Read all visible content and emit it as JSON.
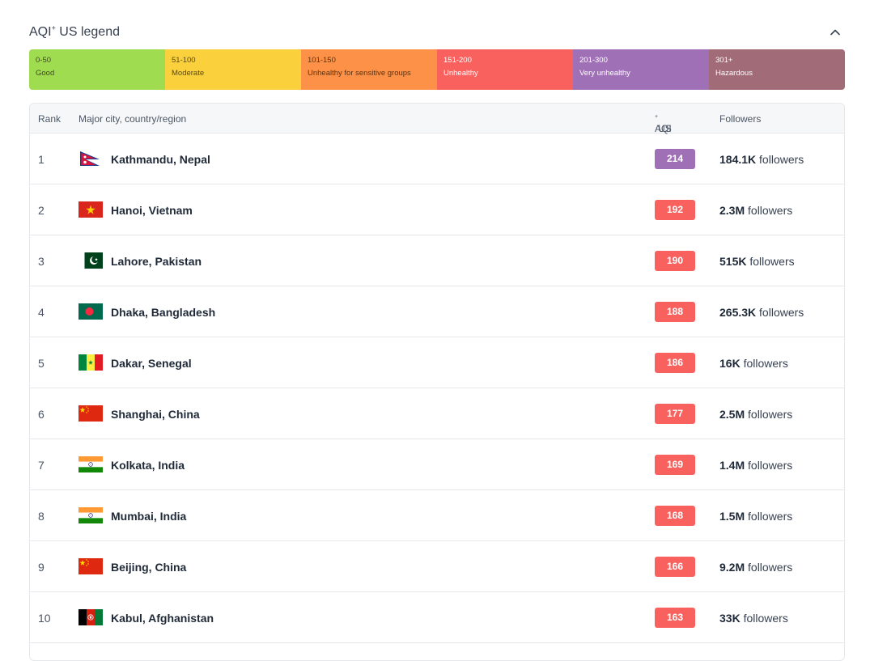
{
  "legend": {
    "title": "AQI",
    "title_sup": "+",
    "title_suffix": " US legend",
    "segments": [
      {
        "range": "0-50",
        "label": "Good",
        "color": "#a0dc50",
        "text_color": "#3d4a1f"
      },
      {
        "range": "51-100",
        "label": "Moderate",
        "color": "#fbd03d",
        "text_color": "#5a4a10"
      },
      {
        "range": "101-150",
        "label": "Unhealthy for sensitive groups",
        "color": "#fc9147",
        "text_color": "#5e3210"
      },
      {
        "range": "151-200",
        "label": "Unhealthy",
        "color": "#f9615e",
        "text_color": "#ffffff"
      },
      {
        "range": "201-300",
        "label": "Very unhealthy",
        "color": "#a070b6",
        "text_color": "#ffffff"
      },
      {
        "range": "301+",
        "label": "Hazardous",
        "color": "#a16b78",
        "text_color": "#ffffff"
      }
    ]
  },
  "table": {
    "headers": {
      "rank": "Rank",
      "city": "Major city, country/region",
      "aqi": "AQI",
      "aqi_sup": "+",
      "aqi_suffix": " US",
      "followers": "Followers"
    },
    "followers_word": "followers",
    "rows": [
      {
        "rank": "1",
        "city": "Kathmandu, Nepal",
        "flag": "nepal",
        "aqi": "214",
        "aqi_color": "#a070b6",
        "followers": "184.1K"
      },
      {
        "rank": "2",
        "city": "Hanoi, Vietnam",
        "flag": "vietnam",
        "aqi": "192",
        "aqi_color": "#f9615e",
        "followers": "2.3M"
      },
      {
        "rank": "3",
        "city": "Lahore, Pakistan",
        "flag": "pakistan",
        "aqi": "190",
        "aqi_color": "#f9615e",
        "followers": "515K"
      },
      {
        "rank": "4",
        "city": "Dhaka, Bangladesh",
        "flag": "bangladesh",
        "aqi": "188",
        "aqi_color": "#f9615e",
        "followers": "265.3K"
      },
      {
        "rank": "5",
        "city": "Dakar, Senegal",
        "flag": "senegal",
        "aqi": "186",
        "aqi_color": "#f9615e",
        "followers": "16K"
      },
      {
        "rank": "6",
        "city": "Shanghai, China",
        "flag": "china",
        "aqi": "177",
        "aqi_color": "#f9615e",
        "followers": "2.5M"
      },
      {
        "rank": "7",
        "city": "Kolkata, India",
        "flag": "india",
        "aqi": "169",
        "aqi_color": "#f9615e",
        "followers": "1.4M"
      },
      {
        "rank": "8",
        "city": "Mumbai, India",
        "flag": "india",
        "aqi": "168",
        "aqi_color": "#f9615e",
        "followers": "1.5M"
      },
      {
        "rank": "9",
        "city": "Beijing, China",
        "flag": "china",
        "aqi": "166",
        "aqi_color": "#f9615e",
        "followers": "9.2M"
      },
      {
        "rank": "10",
        "city": "Kabul, Afghanistan",
        "flag": "afghanistan",
        "aqi": "163",
        "aqi_color": "#f9615e",
        "followers": "33K"
      }
    ]
  }
}
